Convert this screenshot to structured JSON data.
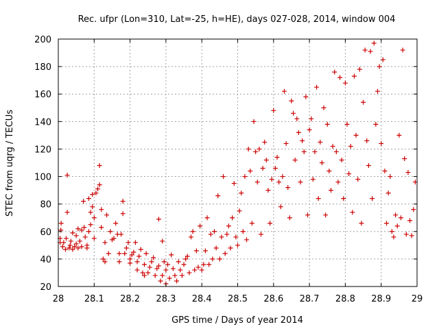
{
  "chart_data": {
    "type": "scatter",
    "title": "Rec. ufpr (Lon=310, Lat=-25, h=HE), days 027-028, 2014, window 004",
    "xlabel": "GPS time / Days of year 2014",
    "ylabel": "STEC from uqrg / TECUs",
    "xlim": [
      28,
      29
    ],
    "ylim": [
      20,
      200
    ],
    "xticks": [
      28,
      28.1,
      28.2,
      28.3,
      28.4,
      28.5,
      28.6,
      28.7,
      28.8,
      28.9,
      29
    ],
    "xtick_labels": [
      "28",
      "28.1",
      "28.2",
      "28.3",
      "28.4",
      "28.5",
      "28.6",
      "28.7",
      "28.8",
      "28.9",
      "29"
    ],
    "yticks": [
      20,
      40,
      60,
      80,
      100,
      120,
      140,
      160,
      180,
      200
    ],
    "ytick_labels": [
      "20",
      "40",
      "60",
      "80",
      "100",
      "120",
      "140",
      "160",
      "180",
      "200"
    ],
    "grid": true,
    "marker": "plus",
    "color": "#cc0000",
    "series": [
      {
        "points": [
          [
            28.005,
            52
          ],
          [
            28.005,
            55
          ],
          [
            28.007,
            61
          ],
          [
            28.008,
            66
          ],
          [
            28.012,
            49
          ],
          [
            28.015,
            52
          ],
          [
            28.02,
            47
          ],
          [
            28.022,
            55
          ],
          [
            28.025,
            101
          ],
          [
            28.025,
            74
          ],
          [
            28.03,
            48
          ],
          [
            28.033,
            50
          ],
          [
            28.035,
            53
          ],
          [
            28.04,
            47
          ],
          [
            28.04,
            59
          ],
          [
            28.045,
            49
          ],
          [
            28.05,
            51
          ],
          [
            28.05,
            57
          ],
          [
            28.055,
            62
          ],
          [
            28.055,
            48
          ],
          [
            28.06,
            53
          ],
          [
            28.065,
            49
          ],
          [
            28.065,
            61
          ],
          [
            28.07,
            82
          ],
          [
            28.072,
            63
          ],
          [
            28.075,
            56
          ],
          [
            28.08,
            48
          ],
          [
            28.08,
            50
          ],
          [
            28.085,
            84
          ],
          [
            28.085,
            60
          ],
          [
            28.09,
            65
          ],
          [
            28.09,
            74
          ],
          [
            28.095,
            78
          ],
          [
            28.095,
            87
          ],
          [
            28.1,
            55
          ],
          [
            28.1,
            70
          ],
          [
            28.105,
            88
          ],
          [
            28.11,
            91
          ],
          [
            28.115,
            94
          ],
          [
            28.115,
            108
          ],
          [
            28.12,
            76
          ],
          [
            28.12,
            63
          ],
          [
            28.125,
            40
          ],
          [
            28.13,
            38
          ],
          [
            28.13,
            52
          ],
          [
            28.135,
            72
          ],
          [
            28.14,
            44
          ],
          [
            28.145,
            60
          ],
          [
            28.15,
            54
          ],
          [
            28.155,
            55
          ],
          [
            28.16,
            66
          ],
          [
            28.165,
            58
          ],
          [
            28.17,
            38
          ],
          [
            28.17,
            44
          ],
          [
            28.175,
            58
          ],
          [
            28.18,
            82
          ],
          [
            28.18,
            73
          ],
          [
            28.185,
            44
          ],
          [
            28.19,
            48
          ],
          [
            28.195,
            52
          ],
          [
            28.2,
            37
          ],
          [
            28.2,
            40
          ],
          [
            28.205,
            43
          ],
          [
            28.21,
            45
          ],
          [
            28.215,
            52
          ],
          [
            28.22,
            32
          ],
          [
            28.22,
            38
          ],
          [
            28.225,
            42
          ],
          [
            28.23,
            47
          ],
          [
            28.235,
            30
          ],
          [
            28.24,
            28
          ],
          [
            28.24,
            36
          ],
          [
            28.245,
            44
          ],
          [
            28.25,
            30
          ],
          [
            28.255,
            34
          ],
          [
            28.26,
            38
          ],
          [
            28.265,
            41
          ],
          [
            28.27,
            28
          ],
          [
            28.275,
            33
          ],
          [
            28.28,
            35
          ],
          [
            28.28,
            69
          ],
          [
            28.285,
            24
          ],
          [
            28.29,
            28
          ],
          [
            28.29,
            53
          ],
          [
            28.295,
            38
          ],
          [
            28.3,
            22
          ],
          [
            28.3,
            32
          ],
          [
            28.305,
            36
          ],
          [
            28.31,
            26
          ],
          [
            28.315,
            43
          ],
          [
            28.32,
            33
          ],
          [
            28.325,
            28
          ],
          [
            28.33,
            24
          ],
          [
            28.335,
            38
          ],
          [
            28.34,
            32
          ],
          [
            28.345,
            28
          ],
          [
            28.35,
            36
          ],
          [
            28.355,
            40
          ],
          [
            28.36,
            42
          ],
          [
            28.365,
            30
          ],
          [
            28.37,
            56
          ],
          [
            28.375,
            60
          ],
          [
            28.38,
            32
          ],
          [
            28.385,
            46
          ],
          [
            28.39,
            34
          ],
          [
            28.395,
            64
          ],
          [
            28.4,
            32
          ],
          [
            28.405,
            36
          ],
          [
            28.41,
            46
          ],
          [
            28.415,
            70
          ],
          [
            28.42,
            36
          ],
          [
            28.425,
            58
          ],
          [
            28.43,
            40
          ],
          [
            28.435,
            60
          ],
          [
            28.44,
            48
          ],
          [
            28.445,
            86
          ],
          [
            28.45,
            40
          ],
          [
            28.455,
            56
          ],
          [
            28.46,
            100
          ],
          [
            28.465,
            44
          ],
          [
            28.47,
            58
          ],
          [
            28.475,
            64
          ],
          [
            28.48,
            48
          ],
          [
            28.485,
            70
          ],
          [
            28.49,
            95
          ],
          [
            28.495,
            56
          ],
          [
            28.5,
            50
          ],
          [
            28.505,
            75
          ],
          [
            28.51,
            88
          ],
          [
            28.515,
            60
          ],
          [
            28.52,
            100
          ],
          [
            28.525,
            54
          ],
          [
            28.53,
            120
          ],
          [
            28.535,
            104
          ],
          [
            28.54,
            66
          ],
          [
            28.545,
            140
          ],
          [
            28.55,
            118
          ],
          [
            28.555,
            96
          ],
          [
            28.56,
            120
          ],
          [
            28.565,
            58
          ],
          [
            28.57,
            106
          ],
          [
            28.575,
            125
          ],
          [
            28.58,
            112
          ],
          [
            28.585,
            90
          ],
          [
            28.59,
            66
          ],
          [
            28.595,
            98
          ],
          [
            28.6,
            148
          ],
          [
            28.605,
            106
          ],
          [
            28.61,
            114
          ],
          [
            28.615,
            96
          ],
          [
            28.62,
            78
          ],
          [
            28.625,
            100
          ],
          [
            28.63,
            162
          ],
          [
            28.635,
            124
          ],
          [
            28.64,
            92
          ],
          [
            28.645,
            70
          ],
          [
            28.65,
            155
          ],
          [
            28.655,
            146
          ],
          [
            28.66,
            112
          ],
          [
            28.665,
            142
          ],
          [
            28.67,
            132
          ],
          [
            28.675,
            96
          ],
          [
            28.68,
            126
          ],
          [
            28.685,
            118
          ],
          [
            28.69,
            158
          ],
          [
            28.695,
            72
          ],
          [
            28.7,
            134
          ],
          [
            28.705,
            142
          ],
          [
            28.71,
            98
          ],
          [
            28.715,
            118
          ],
          [
            28.72,
            165
          ],
          [
            28.725,
            84
          ],
          [
            28.73,
            125
          ],
          [
            28.735,
            110
          ],
          [
            28.74,
            150
          ],
          [
            28.745,
            72
          ],
          [
            28.75,
            138
          ],
          [
            28.755,
            104
          ],
          [
            28.76,
            90
          ],
          [
            28.765,
            122
          ],
          [
            28.77,
            176
          ],
          [
            28.775,
            118
          ],
          [
            28.78,
            96
          ],
          [
            28.785,
            172
          ],
          [
            28.79,
            112
          ],
          [
            28.795,
            84
          ],
          [
            28.8,
            168
          ],
          [
            28.805,
            138
          ],
          [
            28.81,
            102
          ],
          [
            28.815,
            122
          ],
          [
            28.82,
            74
          ],
          [
            28.825,
            173
          ],
          [
            28.83,
            130
          ],
          [
            28.835,
            98
          ],
          [
            28.84,
            178
          ],
          [
            28.845,
            66
          ],
          [
            28.85,
            154
          ],
          [
            28.855,
            192
          ],
          [
            28.86,
            126
          ],
          [
            28.865,
            108
          ],
          [
            28.87,
            191
          ],
          [
            28.875,
            84
          ],
          [
            28.88,
            197
          ],
          [
            28.885,
            138
          ],
          [
            28.89,
            162
          ],
          [
            28.895,
            180
          ],
          [
            28.9,
            124
          ],
          [
            28.905,
            185
          ],
          [
            28.91,
            104
          ],
          [
            28.915,
            66
          ],
          [
            28.92,
            88
          ],
          [
            28.925,
            100
          ],
          [
            28.93,
            60
          ],
          [
            28.935,
            56
          ],
          [
            28.94,
            72
          ],
          [
            28.945,
            64
          ],
          [
            28.95,
            130
          ],
          [
            28.955,
            70
          ],
          [
            28.96,
            192
          ],
          [
            28.965,
            113
          ],
          [
            28.97,
            58
          ],
          [
            28.975,
            103
          ],
          [
            28.98,
            68
          ],
          [
            28.985,
            57
          ],
          [
            28.99,
            76
          ],
          [
            28.995,
            96
          ]
        ]
      }
    ]
  }
}
